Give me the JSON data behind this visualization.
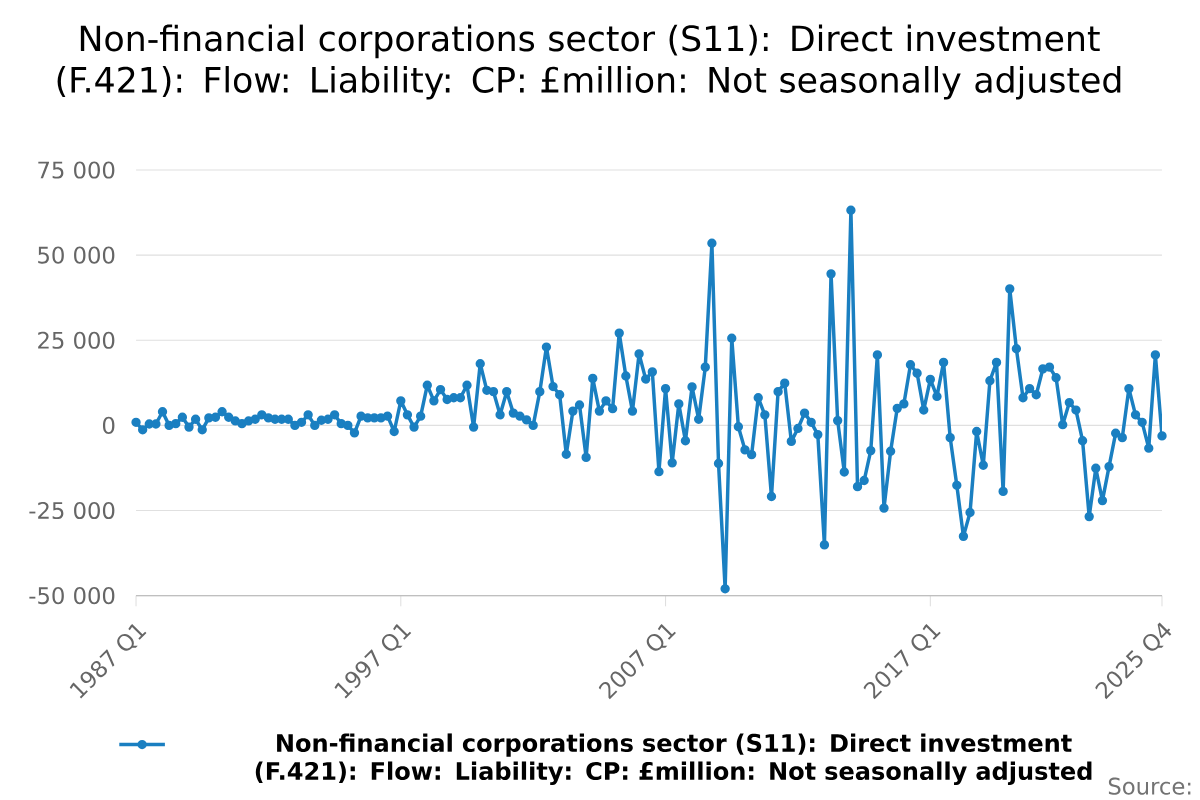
{
  "chart_data": {
    "type": "line",
    "title": "Non-financial corporations sector (S11): Direct investment (F.421): Flow: Liability: CP: £million: Not seasonally adjusted",
    "categories": [
      "1987 Q1",
      null,
      null,
      null,
      null,
      null,
      null,
      null,
      null,
      null,
      null,
      null,
      null,
      null,
      null,
      null,
      null,
      null,
      null,
      null,
      null,
      null,
      null,
      null,
      null,
      null,
      null,
      null,
      null,
      null,
      null,
      null,
      null,
      null,
      null,
      null,
      null,
      null,
      null,
      null,
      "1997 Q1",
      null,
      null,
      null,
      null,
      null,
      null,
      null,
      null,
      null,
      null,
      null,
      null,
      null,
      null,
      null,
      null,
      null,
      null,
      null,
      null,
      null,
      null,
      null,
      null,
      null,
      null,
      null,
      null,
      null,
      null,
      null,
      null,
      null,
      null,
      null,
      null,
      null,
      null,
      null,
      "2007 Q1",
      null,
      null,
      null,
      null,
      null,
      null,
      null,
      null,
      null,
      null,
      null,
      null,
      null,
      null,
      null,
      null,
      null,
      null,
      null,
      null,
      null,
      null,
      null,
      null,
      null,
      null,
      null,
      null,
      null,
      null,
      null,
      null,
      null,
      null,
      null,
      null,
      null,
      null,
      null,
      "2017 Q1",
      null,
      null,
      null,
      null,
      null,
      null,
      null,
      null,
      null,
      null,
      null,
      null,
      null,
      null,
      null,
      null,
      null,
      null,
      null,
      null,
      null,
      null,
      null,
      null,
      null,
      null,
      null,
      null,
      null,
      null,
      null,
      null,
      null,
      null,
      "2025 Q4"
    ],
    "series": [
      {
        "name": "Non-financial corporations sector (S11): Direct investment (F.421): Flow: Liability: CP: £million: Not seasonally adjusted",
        "color": "#1a7fc1",
        "values": [
          900,
          -1300,
          400,
          400,
          4000,
          0,
          500,
          2400,
          -500,
          1800,
          -1300,
          2200,
          2400,
          4000,
          2400,
          1300,
          500,
          1300,
          1800,
          3100,
          2200,
          1800,
          1800,
          1800,
          0,
          900,
          3100,
          0,
          1500,
          1800,
          3100,
          500,
          0,
          -2200,
          2700,
          2200,
          2200,
          2200,
          2700,
          -1800,
          7200,
          3100,
          -500,
          2700,
          11800,
          7200,
          10500,
          7600,
          8100,
          8100,
          11800,
          -500,
          18100,
          10300,
          9900,
          3100,
          9900,
          3600,
          2700,
          1600,
          0,
          9900,
          23000,
          11400,
          9000,
          -8500,
          4200,
          6000,
          -9400,
          13800,
          4200,
          7200,
          4900,
          27100,
          14500,
          4200,
          21000,
          13600,
          15700,
          -13600,
          10800,
          -11000,
          6300,
          -4500,
          11300,
          1800,
          17100,
          53500,
          -11200,
          -48000,
          25600,
          -400,
          -7200,
          -8600,
          8100,
          3100,
          -20900,
          9900,
          12400,
          -4700,
          -900,
          3600,
          900,
          -2700,
          -35100,
          44500,
          1400,
          -13700,
          63200,
          -18000,
          -16200,
          -7400,
          20700,
          -24300,
          -7600,
          5000,
          6300,
          17800,
          15300,
          4500,
          13500,
          8500,
          18500,
          -3600,
          -17600,
          -32600,
          -25600,
          -1800,
          -11700,
          13100,
          18500,
          -19400,
          40100,
          22500,
          8100,
          10800,
          9000,
          16600,
          17100,
          14000,
          200,
          6700,
          4500,
          -4500,
          -26800,
          -12600,
          -22100,
          -12100,
          -2300,
          -3600,
          10800,
          3100,
          900,
          -6700,
          20700,
          -3100
        ]
      }
    ],
    "ylim": [
      -50000,
      75000
    ],
    "yticks": [
      {
        "value": -50000,
        "label": "-50 000"
      },
      {
        "value": -25000,
        "label": "-25 000"
      },
      {
        "value": 0,
        "label": "0"
      },
      {
        "value": 25000,
        "label": "25 000"
      },
      {
        "value": 50000,
        "label": "50 000"
      },
      {
        "value": 75000,
        "label": "75 000"
      }
    ],
    "grid": "y",
    "legend": "bottom",
    "marker": "circle",
    "line_style": "solid",
    "annotations": [
      "Source:"
    ]
  }
}
